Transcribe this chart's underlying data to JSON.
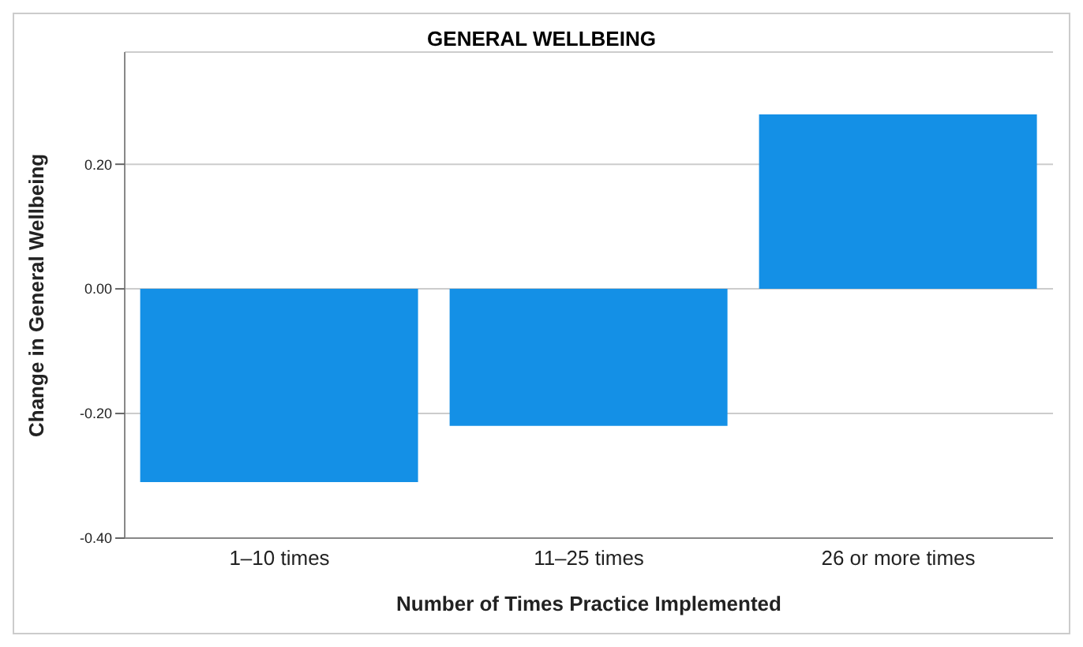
{
  "chart_data": {
    "type": "bar",
    "title": "GENERAL WELLBEING",
    "xlabel": "Number of Times Practice Implemented",
    "ylabel": "Change in General Wellbeing",
    "categories": [
      "1–10 times",
      "11–25 times",
      "26 or more times"
    ],
    "values": [
      -0.31,
      -0.22,
      0.28
    ],
    "color": "#1490e6",
    "ylim": [
      -0.4,
      0.38
    ],
    "yticks": [
      {
        "value": -0.4,
        "label": "-0.40"
      },
      {
        "value": -0.2,
        "label": "-0.20"
      },
      {
        "value": 0,
        "label": "0.00"
      },
      {
        "value": 0.2,
        "label": "0.20"
      }
    ],
    "grid": "y",
    "legend": false
  }
}
